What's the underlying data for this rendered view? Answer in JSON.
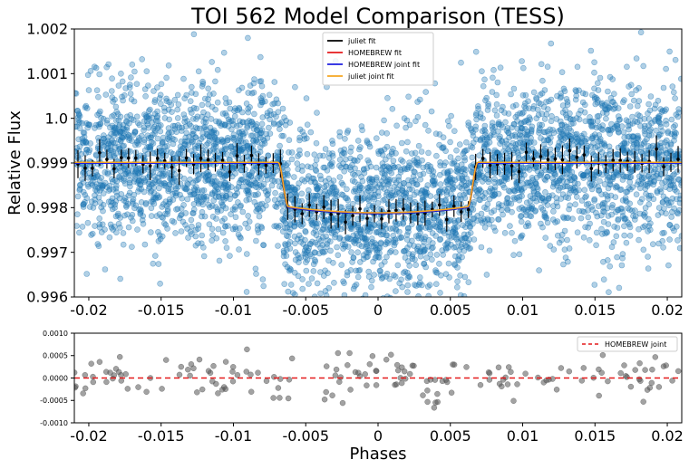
{
  "chart_data": [
    {
      "type": "scatter",
      "title": "TOI 562 Model Comparison (TESS)",
      "xlabel": "",
      "ylabel": "Relative Flux",
      "xlim": [
        -0.021,
        0.021
      ],
      "ylim": [
        0.996,
        1.002
      ],
      "x_ticks": [
        -0.02,
        -0.015,
        -0.01,
        -0.005,
        0,
        0.005,
        0.01,
        0.015,
        0.02
      ],
      "x_tick_labels": [
        "-0.02",
        "-0.015",
        "-0.01",
        "-0.005",
        "0",
        "0.005",
        "0.01",
        "0.015",
        "0.02"
      ],
      "y_ticks": [
        0.996,
        0.997,
        0.998,
        0.999,
        1.0,
        1.001,
        1.002
      ],
      "y_tick_labels": [
        "0.996",
        "0.997",
        "0.998",
        "0.999",
        "1.0",
        "1.001",
        "1.002"
      ],
      "grid": false,
      "legend": {
        "placement": "top-center"
      },
      "transit_model": {
        "baseline": 0.999,
        "depth_center": 0.00113,
        "ingress_start": 0.0069,
        "ingress_end": 0.0062,
        "limb_darkening": 0.12
      },
      "raw_points": {
        "approx_count": 4200,
        "scatter_sigma": 0.0009,
        "color": "#1f77b4"
      },
      "binned_points": {
        "spacing": 0.0005,
        "errorbar_half_range": 0.00025,
        "color": "#000000"
      },
      "series": [
        {
          "name": "juliet fit",
          "color": "#000000"
        },
        {
          "name": "HOMEBREW fit",
          "color": "#e41a1c"
        },
        {
          "name": "HOMEBREW joint fit",
          "color": "#1f1fe0"
        },
        {
          "name": "juliet joint fit",
          "color": "#f5a623"
        }
      ]
    },
    {
      "type": "scatter",
      "title": "",
      "xlabel": "Phases",
      "ylabel": "",
      "xlim": [
        -0.021,
        0.021
      ],
      "ylim": [
        -0.001,
        0.001
      ],
      "x_ticks": [
        -0.02,
        -0.015,
        -0.01,
        -0.005,
        0,
        0.005,
        0.01,
        0.015,
        0.02
      ],
      "x_tick_labels": [
        "-0.02",
        "-0.015",
        "-0.01",
        "-0.005",
        "0",
        "0.005",
        "0.01",
        "0.015",
        "0.02"
      ],
      "y_ticks": [
        -0.001,
        -0.0005,
        0.0,
        0.0005,
        0.001
      ],
      "y_tick_labels": [
        "-0.0010",
        "-0.0005",
        "0.0000",
        "0.0005",
        "0.0010"
      ],
      "grid": false,
      "legend": {
        "placement": "top-right"
      },
      "residuals": {
        "approx_count": 170,
        "scatter_sigma": 0.00024,
        "color": "#555555"
      },
      "series": [
        {
          "name": "HOMEBREW joint",
          "color": "#e41a1c",
          "style": "dashed",
          "value": 0.0
        }
      ]
    }
  ]
}
